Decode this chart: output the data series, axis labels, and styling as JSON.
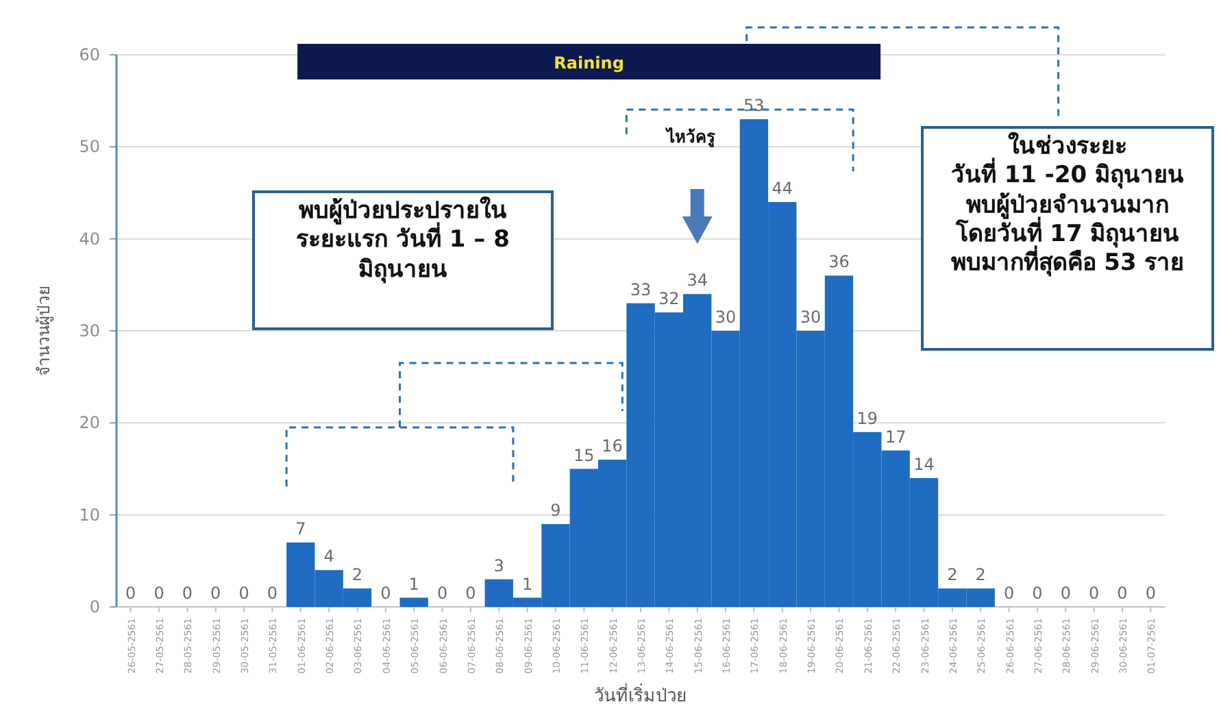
{
  "chart_data": {
    "type": "bar",
    "xlabel": "วันที่เริ่มป่วย",
    "ylabel": "จำนวนผู้ป่วย",
    "categories": [
      "26-05-2561",
      "27-05-2561",
      "28-05-2561",
      "29-05-2561",
      "30-05-2561",
      "31-05-2561",
      "01-06-2561",
      "02-06-2561",
      "03-06-2561",
      "04-06-2561",
      "05-06-2561",
      "06-06-2561",
      "07-06-2561",
      "08-06-2561",
      "09-06-2561",
      "10-06-2561",
      "11-06-2561",
      "12-06-2561",
      "13-06-2561",
      "14-06-2561",
      "15-06-2561",
      "16-06-2561",
      "17-06-2561",
      "18-06-2561",
      "19-06-2561",
      "20-06-2561",
      "21-06-2561",
      "22-06-2561",
      "23-06-2561",
      "24-06-2561",
      "25-06-2561",
      "26-06-2561",
      "27-06-2561",
      "28-06-2561",
      "29-06-2561",
      "30-06-2561",
      "01-07-2561"
    ],
    "values": [
      0,
      0,
      0,
      0,
      0,
      0,
      7,
      4,
      2,
      0,
      1,
      0,
      0,
      3,
      1,
      9,
      15,
      16,
      33,
      32,
      34,
      30,
      53,
      44,
      30,
      36,
      19,
      17,
      14,
      2,
      2,
      0,
      0,
      0,
      0,
      0,
      0
    ],
    "color": "#1f6cc0",
    "ylim": [
      0,
      60
    ],
    "yticks": [
      0,
      10,
      20,
      30,
      40,
      50,
      60
    ],
    "grid": "y",
    "data_labels": true,
    "annotations": [
      "Raining",
      "พบผู้ป่วยประปรายใน\nระยะแรก วันที่ 1 – 8\nมิถุนายน",
      "ในช่วงระยะ\nวันที่ 11 -20 มิถุนายน\nพบผู้ป่วยจำนวนมาก\nโดยวันที่ 17 มิถุนายน\nพบมากที่สุดคือ 53 ราย",
      "ไหว้ครู"
    ]
  }
}
